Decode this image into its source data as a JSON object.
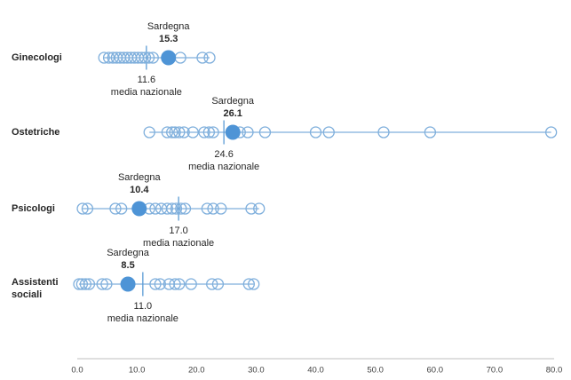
{
  "chart_data": {
    "type": "scatter",
    "title": "",
    "description_visible_text_only": "Strip plot of regional staffing values per professional category; open circles = regions, filled circle = Sardegna, vertical tick = media nazionale",
    "x_axis": {
      "min": 0,
      "max": 80,
      "ticks": [
        0,
        10,
        20,
        30,
        40,
        50,
        60,
        70,
        80
      ],
      "tick_labels": [
        "0.0",
        "10.0",
        "20.0",
        "30.0",
        "40.0",
        "50.0",
        "60.0",
        "70.0",
        "80.0"
      ],
      "grid": false
    },
    "legend": "none",
    "rows": [
      {
        "category": "Ginecologi",
        "sardegna": {
          "label": "Sardegna",
          "value": 15.3,
          "value_label": "15.3"
        },
        "media_nazionale": {
          "label": "media nazionale",
          "value": 11.6,
          "value_label": "11.6"
        },
        "region_values": [
          4.5,
          5.3,
          6.0,
          6.6,
          7.2,
          7.8,
          8.4,
          9.0,
          9.6,
          10.2,
          10.8,
          11.4,
          12.0,
          12.7,
          17.3,
          21.0,
          22.2
        ]
      },
      {
        "category": "Ostetriche",
        "sardegna": {
          "label": "Sardegna",
          "value": 26.1,
          "value_label": "26.1"
        },
        "media_nazionale": {
          "label": "media nazionale",
          "value": 24.6,
          "value_label": "24.6"
        },
        "region_values": [
          12.1,
          15.1,
          15.9,
          16.4,
          17.1,
          17.9,
          19.4,
          21.3,
          22.1,
          22.8,
          27.3,
          28.6,
          31.5,
          40.0,
          42.2,
          51.4,
          59.2,
          79.5
        ]
      },
      {
        "category": "Psicologi",
        "sardegna": {
          "label": "Sardegna",
          "value": 10.4,
          "value_label": "10.4"
        },
        "media_nazionale": {
          "label": "media nazionale",
          "value": 17.0,
          "value_label": "17.0"
        },
        "region_values": [
          0.9,
          1.7,
          6.4,
          7.4,
          12.1,
          13.1,
          14.1,
          15.1,
          15.9,
          16.6,
          17.4,
          18.1,
          21.8,
          22.8,
          24.1,
          29.2,
          30.5
        ]
      },
      {
        "category": "Assistenti sociali",
        "sardegna": {
          "label": "Sardegna",
          "value": 8.5,
          "value_label": "8.5"
        },
        "media_nazionale": {
          "label": "media nazionale",
          "value": 11.0,
          "value_label": "11.0"
        },
        "region_values": [
          0.3,
          0.8,
          1.4,
          2.0,
          4.2,
          4.9,
          13.1,
          13.9,
          15.4,
          16.4,
          17.1,
          19.1,
          22.6,
          23.6,
          28.8,
          29.6
        ]
      }
    ],
    "colors": {
      "point_stroke": "#7FAFDC",
      "sardegna_fill": "#4E94D6",
      "connector_line": "#7FAFDC",
      "media_line": "#5B9BD5",
      "axis_line": "#BFBFBF",
      "label_text": "#262626",
      "tick_text": "#404040"
    }
  }
}
